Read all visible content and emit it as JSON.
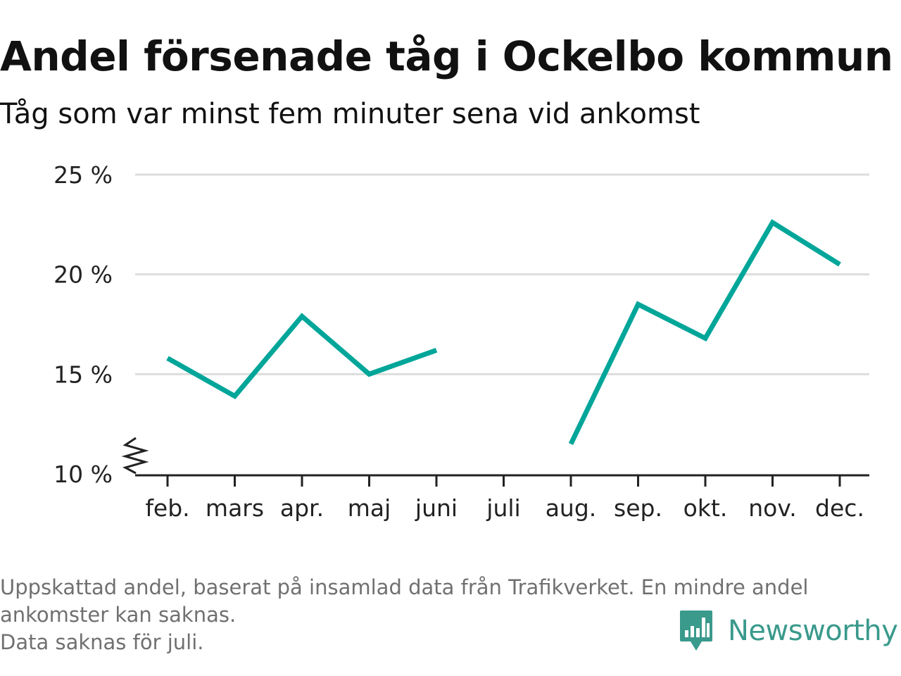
{
  "title": "Andel försenade tåg i Ockelbo kommun",
  "subtitle": "Tåg som var minst fem minuter sena vid ankomst",
  "footnote": {
    "line1": "Uppskattad andel, baserat på insamlad data från Trafikverket. En mindre andel",
    "line2": "ankomster kan saknas.",
    "line3": "Data saknas för juli."
  },
  "brand": {
    "name": "Newsworthy",
    "icon": "newsworthy-logo-icon",
    "color": "#3a9a8c"
  },
  "chart_data": {
    "type": "line",
    "title": "Andel försenade tåg i Ockelbo kommun",
    "subtitle": "Tåg som var minst fem minuter sena vid ankomst",
    "categories": [
      "feb.",
      "mars",
      "apr.",
      "maj",
      "juni",
      "juli",
      "aug.",
      "sep.",
      "okt.",
      "nov.",
      "dec."
    ],
    "series": [
      {
        "values": [
          15.8,
          13.9,
          17.9,
          15.0,
          16.2,
          null,
          11.5,
          18.5,
          16.8,
          22.6,
          20.5
        ],
        "color": "#00a699"
      }
    ],
    "ylim": [
      10,
      25
    ],
    "yticks": [
      10,
      15,
      20,
      25
    ],
    "ytick_labels": [
      "10 %",
      "15 %",
      "20 %",
      "25 %"
    ],
    "ylabel": "",
    "xlabel": "",
    "grid": true,
    "axis_break": true,
    "legend": false,
    "grid_color": "#dddddd",
    "axis_color": "#222222"
  }
}
